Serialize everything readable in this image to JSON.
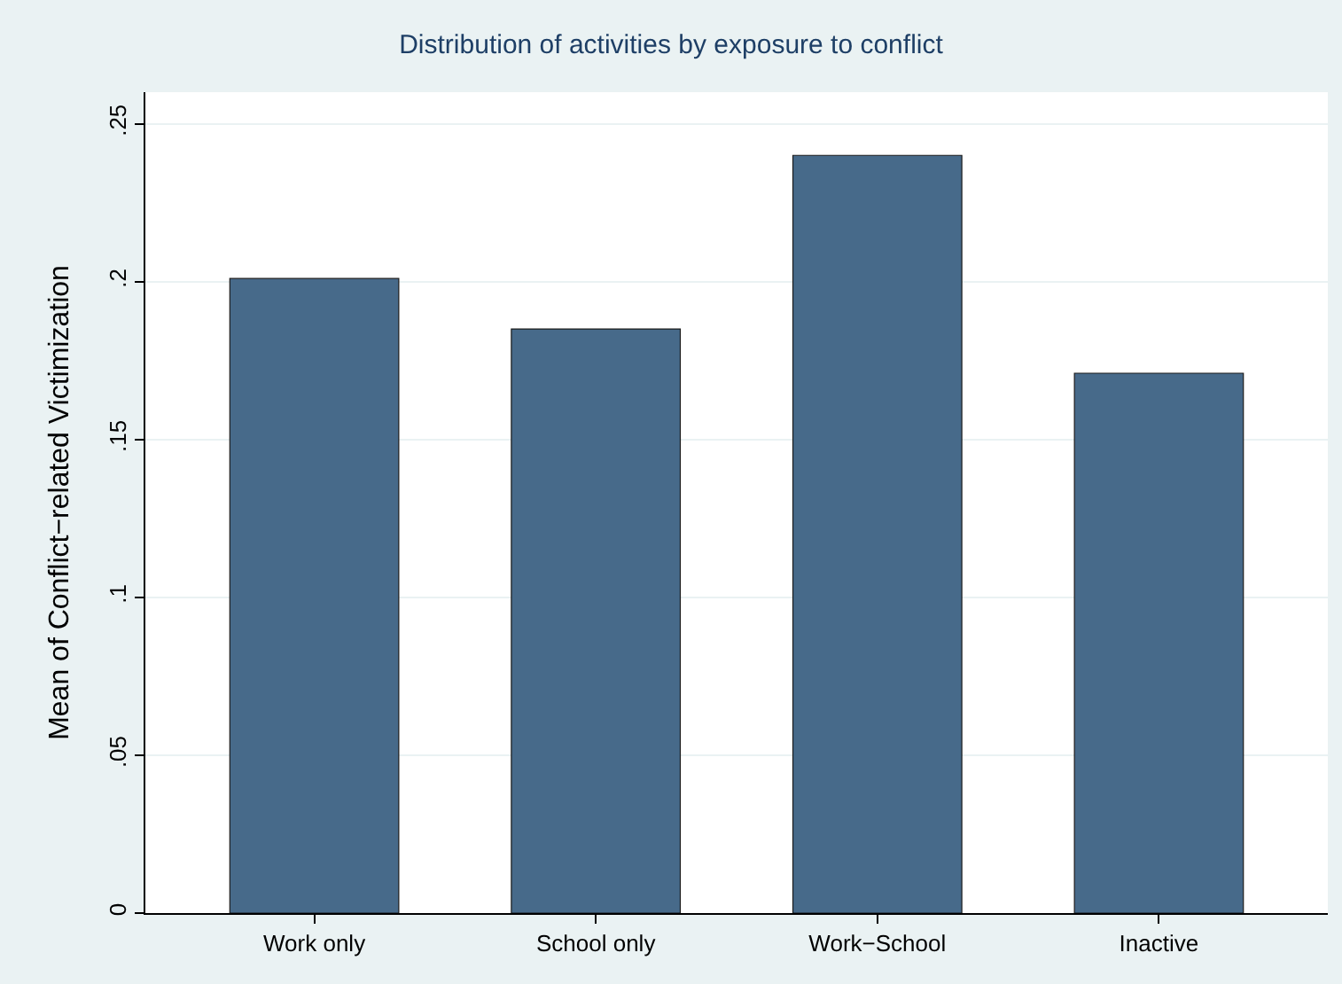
{
  "chart_data": {
    "type": "bar",
    "title": "Distribution of activities by exposure to conflict",
    "ylabel": "Mean of Conflict−related Victimization",
    "categories": [
      "Work only",
      "School only",
      "Work−School",
      "Inactive"
    ],
    "values": [
      0.201,
      0.185,
      0.24,
      0.171
    ],
    "color": "#476a8a",
    "ylim": [
      0,
      0.26
    ],
    "yticks": [
      0,
      {
        "value": 0.05,
        "label": ".05"
      },
      {
        "value": 0.1,
        "label": ".1"
      },
      {
        "value": 0.15,
        "label": ".15"
      },
      {
        "value": 0.2,
        "label": ".2"
      },
      {
        "value": 0.25,
        "label": ".25"
      }
    ],
    "grid": "y"
  }
}
